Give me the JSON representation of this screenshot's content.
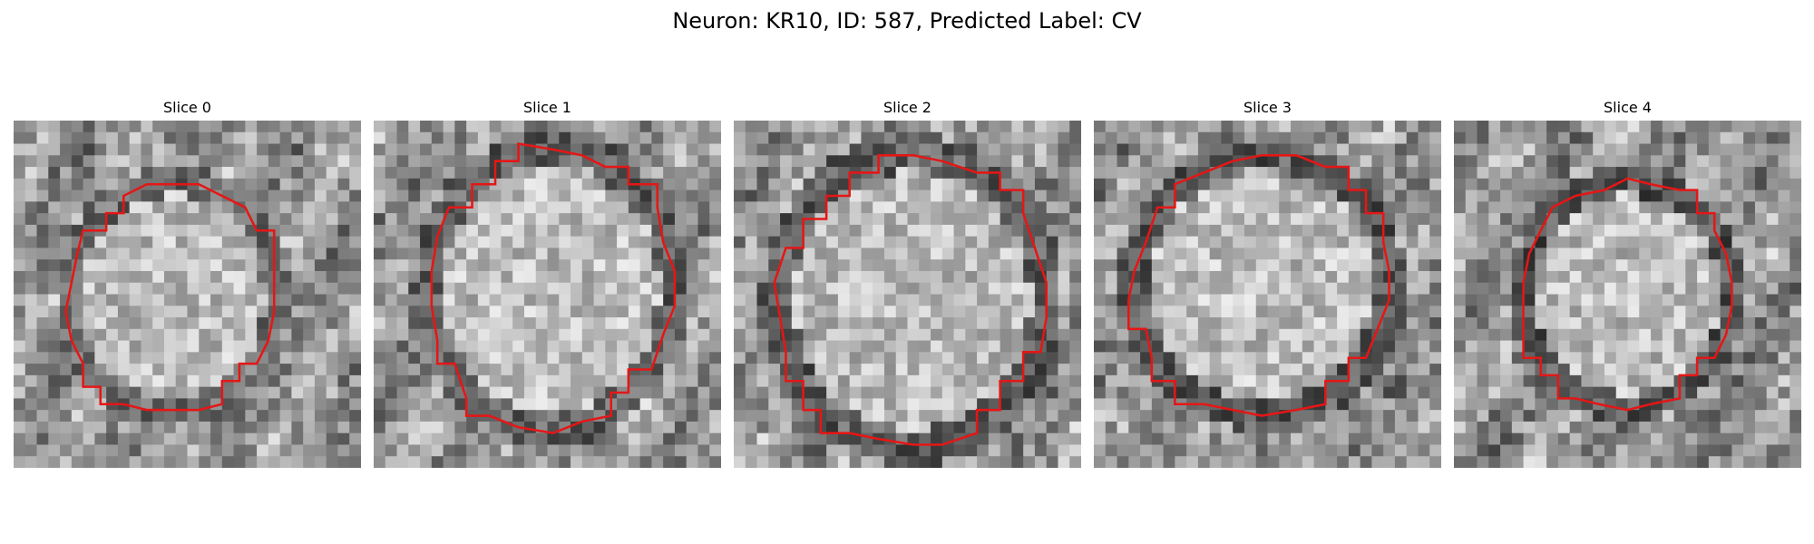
{
  "figure": {
    "title": "Neuron: KR10, ID: 587, Predicted Label: CV"
  },
  "panels": [
    {
      "label": "Slice 0",
      "image": "grayscale-microscopy-slice-with-red-neuron-outline"
    },
    {
      "label": "Slice 1",
      "image": "grayscale-microscopy-slice-with-red-neuron-outline"
    },
    {
      "label": "Slice 2",
      "image": "grayscale-microscopy-slice-with-red-neuron-outline"
    },
    {
      "label": "Slice 3",
      "image": "grayscale-microscopy-slice-with-red-neuron-outline"
    },
    {
      "label": "Slice 4",
      "image": "grayscale-microscopy-slice-with-red-neuron-outline"
    }
  ],
  "colors": {
    "outline": "#e51616",
    "background": "#ffffff"
  }
}
